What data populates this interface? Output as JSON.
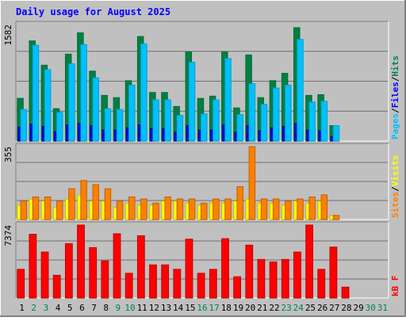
{
  "title": "Daily usage for August 2025",
  "colors": {
    "page_bg": "#c0c0c0",
    "panel_bg": "#c0c0c0",
    "title": "#0000ff",
    "pages": "#00c0ff",
    "files": "#0000ff",
    "hits": "#008040",
    "sites": "#ff8000",
    "visits": "#ffff00",
    "kbf": "#ff0000",
    "weekday": "#000000",
    "weekend": "#00805c"
  },
  "legend": {
    "top": [
      {
        "text": "Pages",
        "color": "#00c0ff"
      },
      {
        "text": "/",
        "color": "#000000"
      },
      {
        "text": "Files",
        "color": "#0000ff"
      },
      {
        "text": "/",
        "color": "#000000"
      },
      {
        "text": "Hits",
        "color": "#00805c"
      }
    ],
    "middle": [
      {
        "text": "Sites",
        "color": "#ff8000"
      },
      {
        "text": "/",
        "color": "#000000"
      },
      {
        "text": "Visits",
        "color": "#ffff00"
      }
    ],
    "bottom": [
      {
        "text": "kB F",
        "color": "#ff0000"
      }
    ]
  },
  "chart_data": [
    {
      "type": "bar",
      "panel": "top",
      "y_max_label": "1582",
      "ylim": [
        0,
        1582
      ],
      "categories": [
        "1",
        "2",
        "3",
        "4",
        "5",
        "6",
        "7",
        "8",
        "9",
        "10",
        "11",
        "12",
        "13",
        "14",
        "15",
        "16",
        "17",
        "18",
        "19",
        "20",
        "21",
        "22",
        "23",
        "24",
        "25",
        "26",
        "27",
        "28",
        "29",
        "30",
        "31"
      ],
      "series": [
        {
          "name": "Hits",
          "values": [
            580,
            1360,
            1030,
            440,
            1180,
            1470,
            950,
            620,
            590,
            820,
            1420,
            660,
            660,
            470,
            1210,
            580,
            610,
            1210,
            450,
            1170,
            590,
            820,
            920,
            1540,
            620,
            630,
            210,
            0,
            0,
            0,
            0
          ]
        },
        {
          "name": "Files",
          "values": [
            190,
            230,
            200,
            130,
            220,
            240,
            210,
            150,
            150,
            180,
            220,
            170,
            170,
            120,
            210,
            150,
            150,
            220,
            120,
            210,
            140,
            180,
            200,
            240,
            150,
            140,
            60,
            0,
            0,
            0,
            0
          ]
        },
        {
          "name": "Pages",
          "values": [
            430,
            1300,
            970,
            390,
            1050,
            1310,
            860,
            440,
            430,
            760,
            1320,
            560,
            560,
            350,
            1070,
            370,
            560,
            1120,
            360,
            780,
            500,
            720,
            760,
            1380,
            530,
            540,
            210,
            0,
            0,
            0,
            0
          ]
        }
      ],
      "grid": true
    },
    {
      "type": "bar",
      "panel": "middle",
      "y_max_label": "355",
      "ylim": [
        0,
        355
      ],
      "categories": [
        "1",
        "2",
        "3",
        "4",
        "5",
        "6",
        "7",
        "8",
        "9",
        "10",
        "11",
        "12",
        "13",
        "14",
        "15",
        "16",
        "17",
        "18",
        "19",
        "20",
        "21",
        "22",
        "23",
        "24",
        "25",
        "26",
        "27",
        "28",
        "29",
        "30",
        "31"
      ],
      "series": [
        {
          "name": "Visits",
          "values": [
            70,
            100,
            90,
            60,
            100,
            120,
            90,
            90,
            60,
            80,
            70,
            70,
            90,
            90,
            80,
            70,
            80,
            80,
            90,
            100,
            80,
            80,
            70,
            90,
            80,
            90,
            20,
            0,
            0,
            0,
            0
          ]
        },
        {
          "name": "Sites",
          "values": [
            90,
            110,
            110,
            90,
            150,
            190,
            170,
            150,
            90,
            110,
            100,
            80,
            110,
            100,
            100,
            80,
            100,
            100,
            160,
            355,
            100,
            100,
            90,
            100,
            110,
            120,
            20,
            0,
            0,
            0,
            0
          ]
        }
      ],
      "grid": true
    },
    {
      "type": "bar",
      "panel": "bottom",
      "y_max_label": "7374",
      "ylim": [
        0,
        7374
      ],
      "categories": [
        "1",
        "2",
        "3",
        "4",
        "5",
        "6",
        "7",
        "8",
        "9",
        "10",
        "11",
        "12",
        "13",
        "14",
        "15",
        "16",
        "17",
        "18",
        "19",
        "20",
        "21",
        "22",
        "23",
        "24",
        "25",
        "26",
        "27",
        "28",
        "29",
        "30",
        "31"
      ],
      "series": [
        {
          "name": "kB F",
          "values": [
            2900,
            6450,
            4650,
            2300,
            5500,
            7374,
            5100,
            3750,
            6500,
            2500,
            6300,
            3350,
            3350,
            2900,
            5950,
            2500,
            2900,
            6000,
            2150,
            5350,
            3900,
            3650,
            3900,
            4650,
            7374,
            2900,
            5150,
            1100,
            0,
            0,
            0
          ]
        }
      ],
      "grid": true
    }
  ],
  "day_labels": [
    {
      "text": "1",
      "weekend": false
    },
    {
      "text": "2",
      "weekend": true
    },
    {
      "text": "3",
      "weekend": true
    },
    {
      "text": "4",
      "weekend": false
    },
    {
      "text": "5",
      "weekend": false
    },
    {
      "text": "6",
      "weekend": false
    },
    {
      "text": "7",
      "weekend": false
    },
    {
      "text": "8",
      "weekend": false
    },
    {
      "text": "9",
      "weekend": true
    },
    {
      "text": "10",
      "weekend": true
    },
    {
      "text": "11",
      "weekend": false
    },
    {
      "text": "12",
      "weekend": false
    },
    {
      "text": "13",
      "weekend": false
    },
    {
      "text": "14",
      "weekend": false
    },
    {
      "text": "15",
      "weekend": false
    },
    {
      "text": "16",
      "weekend": true
    },
    {
      "text": "17",
      "weekend": true
    },
    {
      "text": "18",
      "weekend": false
    },
    {
      "text": "19",
      "weekend": false
    },
    {
      "text": "20",
      "weekend": false
    },
    {
      "text": "21",
      "weekend": false
    },
    {
      "text": "22",
      "weekend": false
    },
    {
      "text": "23",
      "weekend": true
    },
    {
      "text": "24",
      "weekend": true
    },
    {
      "text": "25",
      "weekend": false
    },
    {
      "text": "26",
      "weekend": false
    },
    {
      "text": "27",
      "weekend": false
    },
    {
      "text": "28",
      "weekend": false
    },
    {
      "text": "29",
      "weekend": false
    },
    {
      "text": "30",
      "weekend": true
    },
    {
      "text": "31",
      "weekend": true
    }
  ]
}
